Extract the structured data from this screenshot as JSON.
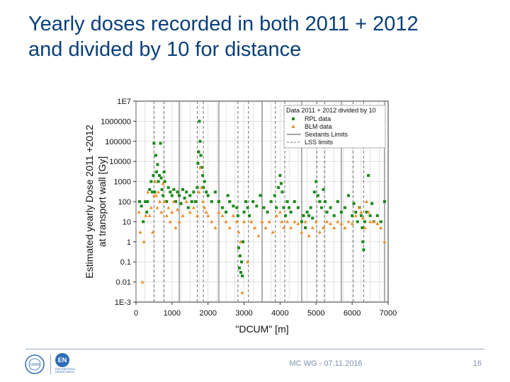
{
  "slide": {
    "title_line1": "Yearly doses recorded in both 2011 + 2012",
    "title_line2": "and divided by 10 for distance",
    "footer_center": "MC WG - 07.11.2016",
    "page_number": "16",
    "logo_en_text": "EN",
    "logo_cern_text": "CERN",
    "logo_en_caption": "ENGINEERING DEPARTMENT"
  },
  "colors": {
    "title": "#0a3f7a",
    "rpl": "#1a8a1a",
    "blm": "#f08a1c",
    "grid": "#cfcfcf",
    "limits": "#707070"
  },
  "chart_data": {
    "type": "scatter",
    "title": "",
    "xlabel": "\"DCUM\" [m]",
    "ylabel_line1": "Estimated yearly Dose 2011 +2012",
    "ylabel_line2": "at transport wall [Gy]",
    "xlim": [
      0,
      7000
    ],
    "ylim_log10": [
      -3,
      7
    ],
    "x_ticks": [
      0,
      1000,
      2000,
      3000,
      4000,
      5000,
      6000,
      7000
    ],
    "x_tick_labels": [
      "0",
      "1000",
      "2000",
      "3000",
      "4000",
      "5000",
      "6000",
      "7000"
    ],
    "y_ticks_log10": [
      -3,
      -2,
      -1,
      0,
      1,
      2,
      3,
      4,
      5,
      6,
      7
    ],
    "y_tick_labels": [
      "1E-3",
      "0.01",
      "0.1",
      "1",
      "10",
      "100",
      "1000",
      "10000",
      "100000",
      "1000000",
      "1E7"
    ],
    "legend": {
      "title": "Data 2011 + 2012 divided by 10",
      "position": "top-right",
      "entries": [
        "RPL data",
        "BLM data",
        "Sextants Limits",
        "LSS limits"
      ]
    },
    "sextant_limits": [
      0,
      1200,
      2300,
      3500,
      4600,
      5700,
      6900
    ],
    "lss_limits": [
      500,
      780,
      1700,
      1870,
      2830,
      3120,
      3870,
      4130,
      5020,
      5230,
      6030,
      6320
    ],
    "series": [
      {
        "name": "RPL data",
        "marker": "square",
        "points": [
          [
            100,
            100
          ],
          [
            150,
            60
          ],
          [
            200,
            10
          ],
          [
            260,
            100
          ],
          [
            300,
            30
          ],
          [
            320,
            100
          ],
          [
            380,
            400
          ],
          [
            420,
            1000
          ],
          [
            450,
            300
          ],
          [
            480,
            2000
          ],
          [
            500,
            80000
          ],
          [
            520,
            300
          ],
          [
            550,
            20000
          ],
          [
            570,
            3000
          ],
          [
            600,
            7000
          ],
          [
            620,
            1000
          ],
          [
            650,
            2000
          ],
          [
            680,
            80000
          ],
          [
            700,
            1500
          ],
          [
            720,
            400
          ],
          [
            750,
            200
          ],
          [
            780,
            3000
          ],
          [
            800,
            1000
          ],
          [
            850,
            100
          ],
          [
            900,
            500
          ],
          [
            950,
            300
          ],
          [
            1000,
            200
          ],
          [
            1050,
            400
          ],
          [
            1100,
            100
          ],
          [
            1150,
            300
          ],
          [
            1200,
            200
          ],
          [
            1250,
            80
          ],
          [
            1300,
            400
          ],
          [
            1350,
            150
          ],
          [
            1400,
            300
          ],
          [
            1450,
            50
          ],
          [
            1500,
            200
          ],
          [
            1550,
            100
          ],
          [
            1600,
            300
          ],
          [
            1650,
            100
          ],
          [
            1700,
            500
          ],
          [
            1720,
            8000
          ],
          [
            1740,
            30000
          ],
          [
            1760,
            1000000
          ],
          [
            1780,
            100000
          ],
          [
            1800,
            20000
          ],
          [
            1820,
            5000
          ],
          [
            1850,
            2000
          ],
          [
            1870,
            500
          ],
          [
            1900,
            1000
          ],
          [
            1950,
            300
          ],
          [
            2000,
            200
          ],
          [
            2100,
            100
          ],
          [
            2200,
            300
          ],
          [
            2300,
            100
          ],
          [
            2400,
            50
          ],
          [
            2500,
            30
          ],
          [
            2550,
            200
          ],
          [
            2600,
            100
          ],
          [
            2700,
            60
          ],
          [
            2800,
            50
          ],
          [
            2830,
            20
          ],
          [
            2850,
            0.5
          ],
          [
            2870,
            0.05
          ],
          [
            2890,
            0.2
          ],
          [
            2910,
            0.03
          ],
          [
            2930,
            0.1
          ],
          [
            2950,
            0.02
          ],
          [
            2970,
            1
          ],
          [
            3000,
            30
          ],
          [
            3050,
            100
          ],
          [
            3100,
            50
          ],
          [
            3150,
            20
          ],
          [
            3250,
            100
          ],
          [
            3350,
            60
          ],
          [
            3450,
            200
          ],
          [
            3550,
            50
          ],
          [
            3650,
            30
          ],
          [
            3750,
            100
          ],
          [
            3850,
            200
          ],
          [
            3900,
            50
          ],
          [
            3950,
            500
          ],
          [
            4000,
            2000
          ],
          [
            4030,
            800
          ],
          [
            4060,
            300
          ],
          [
            4100,
            50
          ],
          [
            4150,
            20
          ],
          [
            4200,
            100
          ],
          [
            4250,
            50
          ],
          [
            4300,
            30
          ],
          [
            4400,
            100
          ],
          [
            4500,
            50
          ],
          [
            4600,
            10
          ],
          [
            4650,
            20
          ],
          [
            4700,
            5
          ],
          [
            4750,
            30
          ],
          [
            4800,
            20
          ],
          [
            4850,
            50
          ],
          [
            4900,
            15
          ],
          [
            4950,
            300
          ],
          [
            5000,
            1000
          ],
          [
            5050,
            200
          ],
          [
            5100,
            100
          ],
          [
            5150,
            50
          ],
          [
            5200,
            400
          ],
          [
            5250,
            100
          ],
          [
            5300,
            30
          ],
          [
            5400,
            50
          ],
          [
            5500,
            20
          ],
          [
            5600,
            100
          ],
          [
            5700,
            30
          ],
          [
            5800,
            50
          ],
          [
            5900,
            200
          ],
          [
            6000,
            20
          ],
          [
            6050,
            80
          ],
          [
            6100,
            30
          ],
          [
            6150,
            10
          ],
          [
            6200,
            50
          ],
          [
            6250,
            20
          ],
          [
            6280,
            5
          ],
          [
            6300,
            1
          ],
          [
            6320,
            0.4
          ],
          [
            6350,
            10
          ],
          [
            6400,
            30
          ],
          [
            6450,
            2000
          ],
          [
            6500,
            20
          ],
          [
            6550,
            80
          ],
          [
            6600,
            10
          ],
          [
            6700,
            20
          ],
          [
            6800,
            10
          ],
          [
            6900,
            100
          ]
        ]
      },
      {
        "name": "BLM data",
        "marker": "triangle",
        "points": [
          [
            80,
            30
          ],
          [
            120,
            3
          ],
          [
            180,
            0.01
          ],
          [
            220,
            1
          ],
          [
            270,
            20
          ],
          [
            330,
            300
          ],
          [
            380,
            20
          ],
          [
            420,
            50
          ],
          [
            460,
            3
          ],
          [
            500,
            200
          ],
          [
            530,
            1000
          ],
          [
            560,
            200
          ],
          [
            590,
            50
          ],
          [
            620,
            300
          ],
          [
            660,
            100
          ],
          [
            700,
            30
          ],
          [
            750,
            800
          ],
          [
            800,
            100
          ],
          [
            850,
            20
          ],
          [
            900,
            50
          ],
          [
            950,
            10
          ],
          [
            1000,
            30
          ],
          [
            1050,
            100
          ],
          [
            1100,
            5
          ],
          [
            1150,
            40
          ],
          [
            1200,
            10
          ],
          [
            1300,
            20
          ],
          [
            1400,
            100
          ],
          [
            1500,
            30
          ],
          [
            1600,
            50
          ],
          [
            1700,
            20
          ],
          [
            1750,
            300
          ],
          [
            1780,
            5000
          ],
          [
            1820,
            500
          ],
          [
            1860,
            100
          ],
          [
            1900,
            50
          ],
          [
            1950,
            30
          ],
          [
            2000,
            20
          ],
          [
            2100,
            10
          ],
          [
            2200,
            5
          ],
          [
            2300,
            30
          ],
          [
            2400,
            20
          ],
          [
            2500,
            10
          ],
          [
            2600,
            5
          ],
          [
            2700,
            20
          ],
          [
            2800,
            10
          ],
          [
            2850,
            3
          ],
          [
            2900,
            1
          ],
          [
            2950,
            0.003
          ],
          [
            3000,
            10
          ],
          [
            3100,
            0.1
          ],
          [
            3200,
            10
          ],
          [
            3300,
            5
          ],
          [
            3400,
            2
          ],
          [
            3500,
            10
          ],
          [
            3600,
            5
          ],
          [
            3700,
            10
          ],
          [
            3800,
            3
          ],
          [
            3900,
            20
          ],
          [
            4000,
            30
          ],
          [
            4050,
            10
          ],
          [
            4100,
            5
          ],
          [
            4200,
            10
          ],
          [
            4300,
            5
          ],
          [
            4400,
            10
          ],
          [
            4500,
            8
          ],
          [
            4600,
            3
          ],
          [
            4700,
            10
          ],
          [
            4800,
            2
          ],
          [
            4900,
            5
          ],
          [
            5000,
            10
          ],
          [
            5100,
            3
          ],
          [
            5200,
            5
          ],
          [
            5300,
            10
          ],
          [
            5400,
            8
          ],
          [
            5500,
            5
          ],
          [
            5600,
            10
          ],
          [
            5700,
            8
          ],
          [
            5800,
            5
          ],
          [
            5900,
            10
          ],
          [
            6000,
            8
          ],
          [
            6100,
            20
          ],
          [
            6200,
            50
          ],
          [
            6250,
            30
          ],
          [
            6300,
            15
          ],
          [
            6350,
            5
          ],
          [
            6400,
            100
          ],
          [
            6450,
            30
          ],
          [
            6500,
            10
          ],
          [
            6600,
            10
          ],
          [
            6700,
            8
          ],
          [
            6800,
            5
          ],
          [
            6900,
            1
          ]
        ]
      }
    ]
  }
}
